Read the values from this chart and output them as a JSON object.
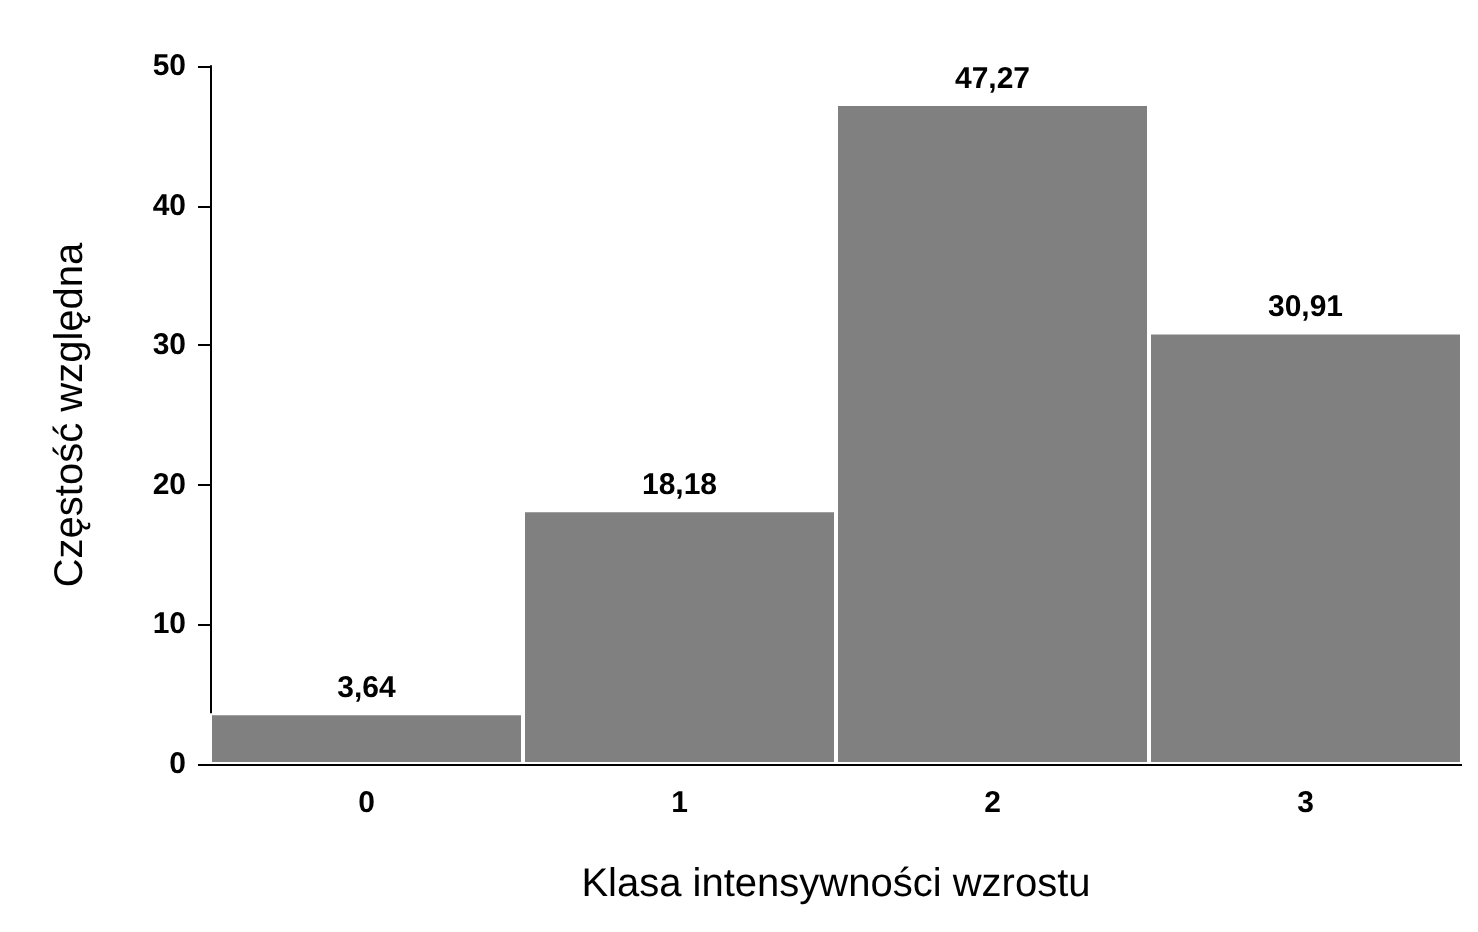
{
  "chart_data": {
    "type": "bar",
    "xlabel": "Klasa intensywności wzrostu",
    "ylabel": "Częstość względna",
    "categories": [
      "0",
      "1",
      "2",
      "3"
    ],
    "values": [
      3.64,
      18.18,
      47.27,
      30.91
    ],
    "value_labels": [
      "3,64",
      "18,18",
      "47,27",
      "30,91"
    ],
    "color": "#808080",
    "ylim": [
      0,
      50
    ],
    "yticks": [
      0,
      10,
      20,
      30,
      40,
      50
    ],
    "grid": false
  }
}
